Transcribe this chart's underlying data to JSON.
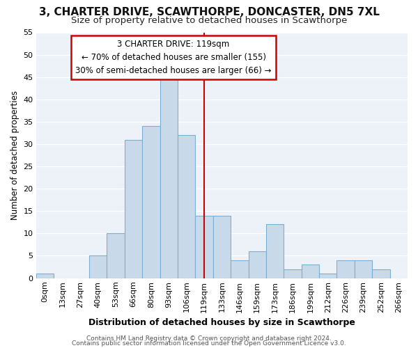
{
  "title1": "3, CHARTER DRIVE, SCAWTHORPE, DONCASTER, DN5 7XL",
  "title2": "Size of property relative to detached houses in Scawthorpe",
  "xlabel": "Distribution of detached houses by size in Scawthorpe",
  "ylabel": "Number of detached properties",
  "bar_labels": [
    "0sqm",
    "13sqm",
    "27sqm",
    "40sqm",
    "53sqm",
    "66sqm",
    "80sqm",
    "93sqm",
    "106sqm",
    "119sqm",
    "133sqm",
    "146sqm",
    "159sqm",
    "173sqm",
    "186sqm",
    "199sqm",
    "212sqm",
    "226sqm",
    "239sqm",
    "252sqm",
    "266sqm"
  ],
  "bar_heights": [
    1,
    0,
    0,
    5,
    10,
    31,
    34,
    45,
    32,
    14,
    14,
    4,
    6,
    12,
    2,
    3,
    1,
    4,
    4,
    2,
    0
  ],
  "bar_color": "#c8d9ea",
  "bar_edge_color": "#7bafd4",
  "bg_color": "#ffffff",
  "plot_bg_color": "#edf2f8",
  "grid_color": "#ffffff",
  "vline_x": 9,
  "vline_color": "#cc0000",
  "annotation_line1": "3 CHARTER DRIVE: 119sqm",
  "annotation_line2": "← 70% of detached houses are smaller (155)",
  "annotation_line3": "30% of semi-detached houses are larger (66) →",
  "annotation_box_edgecolor": "#cc0000",
  "ylim": [
    0,
    55
  ],
  "yticks": [
    0,
    5,
    10,
    15,
    20,
    25,
    30,
    35,
    40,
    45,
    50,
    55
  ],
  "footer1": "Contains HM Land Registry data © Crown copyright and database right 2024.",
  "footer2": "Contains public sector information licensed under the Open Government Licence v3.0.",
  "title1_fontsize": 11,
  "title2_fontsize": 9.5,
  "xlabel_fontsize": 9,
  "ylabel_fontsize": 8.5,
  "tick_fontsize": 8,
  "annotation_fontsize": 8.5,
  "footer_fontsize": 6.5
}
